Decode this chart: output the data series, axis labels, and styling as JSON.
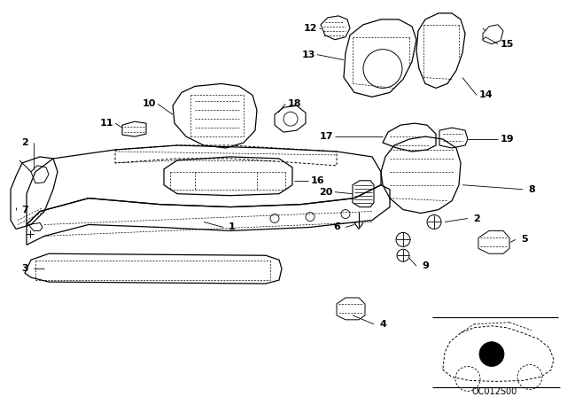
{
  "background_color": "#ffffff",
  "line_color": "#000000",
  "fig_width": 6.4,
  "fig_height": 4.48,
  "dpi": 100,
  "watermark": "OC012S00"
}
